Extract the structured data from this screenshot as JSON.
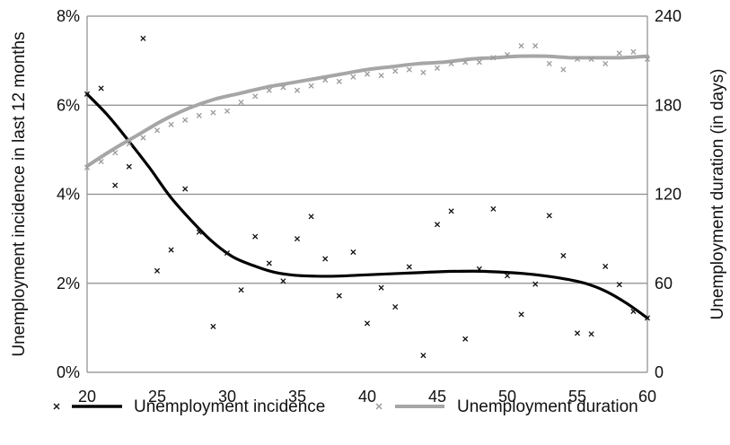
{
  "chart_data": {
    "type": "scatter",
    "x": [
      20,
      21,
      22,
      23,
      24,
      25,
      26,
      27,
      28,
      29,
      30,
      31,
      32,
      33,
      34,
      35,
      36,
      37,
      38,
      39,
      40,
      41,
      42,
      43,
      44,
      45,
      46,
      47,
      48,
      49,
      50,
      51,
      52,
      53,
      54,
      55,
      56,
      57,
      58,
      59,
      60
    ],
    "xlim": [
      20,
      60
    ],
    "x_ticks": [
      "20",
      "25",
      "30",
      "35",
      "40",
      "45",
      "50",
      "55",
      "60"
    ],
    "y_left": {
      "label": "Unemployment incidence in last 12 months",
      "lim": [
        0,
        8
      ],
      "ticks": [
        "0%",
        "2%",
        "4%",
        "6%",
        "8%"
      ]
    },
    "y_right": {
      "label": "Unemployment duration (in days)",
      "lim": [
        0,
        240
      ],
      "ticks": [
        "0",
        "60",
        "120",
        "180",
        "240"
      ]
    },
    "grid": "horizontal",
    "legend_position": "bottom",
    "series": [
      {
        "name": "Unemployment incidence",
        "axis": "left",
        "unit": "%",
        "marker": "x",
        "marker_color": "#111111",
        "trend_color": "#000000",
        "values": [
          6.25,
          6.38,
          4.2,
          4.62,
          7.5,
          2.28,
          2.75,
          4.12,
          3.15,
          1.03,
          2.68,
          1.85,
          3.05,
          2.45,
          2.05,
          3.0,
          3.5,
          2.55,
          1.72,
          2.7,
          1.1,
          1.9,
          1.47,
          2.37,
          0.38,
          3.32,
          3.62,
          0.75,
          2.32,
          3.67,
          2.17,
          1.3,
          1.98,
          3.52,
          2.62,
          0.88,
          0.86,
          2.38,
          1.97,
          1.37,
          1.22
        ],
        "trend": [
          6.25,
          5.77,
          5.2,
          4.6,
          3.95,
          3.42,
          2.95,
          2.6,
          2.4,
          2.25,
          2.18,
          2.16,
          2.16,
          2.18,
          2.2,
          2.22,
          2.24,
          2.26,
          2.27,
          2.27,
          2.25,
          2.22,
          2.17,
          2.1,
          2.0,
          1.82,
          1.55,
          1.22
        ]
      },
      {
        "name": "Unemployment duration",
        "axis": "right",
        "unit": "days",
        "marker": "x",
        "marker_color": "#9a9a9a",
        "trend_color": "#a6a6a6",
        "values": [
          138,
          142,
          148,
          154,
          158,
          163,
          167,
          170,
          173,
          175,
          176,
          182,
          186,
          190,
          192,
          190,
          193,
          197,
          196,
          199,
          201,
          200,
          203,
          204,
          202,
          205,
          208,
          209,
          209,
          212,
          214,
          220,
          220,
          208,
          204,
          211,
          211,
          208,
          215,
          216,
          211
        ],
        "trend": [
          139,
          150,
          160,
          170,
          178,
          184,
          188,
          192,
          195,
          198,
          201,
          204,
          206,
          208,
          209,
          211,
          212,
          213,
          213,
          212,
          212,
          212,
          213
        ]
      }
    ]
  }
}
